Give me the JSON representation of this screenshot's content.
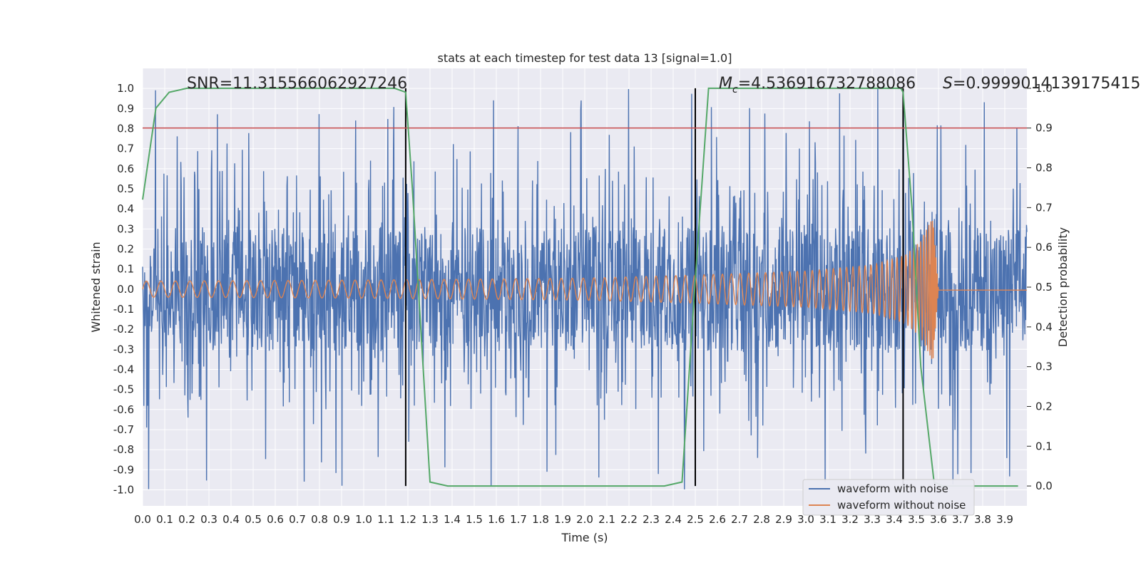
{
  "chart_data": {
    "type": "line",
    "title": "stats at each timestep for test data 13 [signal=1.0]",
    "xlabel": "Time (s)",
    "ylabel": "Whitened strain",
    "y2label": "Detection probability",
    "xlim": [
      0.0,
      4.0
    ],
    "ylim": [
      -1.08,
      1.1
    ],
    "y2lim": [
      -0.05,
      1.05
    ],
    "x_ticks": [
      "0.0",
      "0.1",
      "0.2",
      "0.3",
      "0.4",
      "0.5",
      "0.6",
      "0.7",
      "0.8",
      "0.9",
      "1.0",
      "1.1",
      "1.2",
      "1.3",
      "1.4",
      "1.5",
      "1.6",
      "1.7",
      "1.8",
      "1.9",
      "2.0",
      "2.1",
      "2.2",
      "2.3",
      "2.4",
      "2.5",
      "2.6",
      "2.7",
      "2.8",
      "2.9",
      "3.0",
      "3.1",
      "3.2",
      "3.3",
      "3.4",
      "3.5",
      "3.6",
      "3.7",
      "3.8",
      "3.9"
    ],
    "y_ticks": [
      "1.0",
      "0.9",
      "0.8",
      "0.7",
      "0.6",
      "0.5",
      "0.4",
      "0.3",
      "0.2",
      "0.1",
      "0.0",
      "-0.1",
      "-0.2",
      "-0.3",
      "-0.4",
      "-0.5",
      "-0.6",
      "-0.7",
      "-0.8",
      "-0.9",
      "-1.0"
    ],
    "y2_ticks": [
      "1.0",
      "0.9",
      "0.8",
      "0.7",
      "0.6",
      "0.5",
      "0.4",
      "0.3",
      "0.2",
      "0.1",
      "0.0"
    ],
    "annotations": {
      "snr": "SNR=11.315566062927246",
      "mc": "=4.536916732788086",
      "mc_symbol": "M",
      "mc_sub": "c",
      "s": "=0.9999014139175415",
      "s_symbol": "S"
    },
    "threshold": {
      "y2": 0.9,
      "color": "#c44e52"
    },
    "vlines": [
      1.19,
      2.5,
      3.44
    ],
    "series": [
      {
        "name": "waveform with noise",
        "color": "#4c72b0",
        "description": "noisy whitened strain, roughly uniform band with spikes up to about +/-1.0"
      },
      {
        "name": "waveform without noise",
        "color": "#dd8452",
        "envelope": {
          "t": [
            0.0,
            1.0,
            2.0,
            2.5,
            3.0,
            3.3,
            3.45,
            3.52,
            3.56,
            3.575,
            3.6,
            4.0
          ],
          "amp": [
            0.04,
            0.045,
            0.055,
            0.07,
            0.09,
            0.12,
            0.17,
            0.24,
            0.33,
            0.36,
            0.0,
            0.0
          ]
        }
      },
      {
        "name": "detection probability",
        "color": "#55a868",
        "axis": "y2",
        "x": [
          0.0,
          0.06,
          0.12,
          0.2,
          0.6,
          1.0,
          1.14,
          1.19,
          1.22,
          1.3,
          1.38,
          1.6,
          2.0,
          2.36,
          2.44,
          2.5,
          2.56,
          2.65,
          3.0,
          3.43,
          3.44,
          3.48,
          3.52,
          3.58,
          3.62,
          3.8,
          3.96
        ],
        "y": [
          0.72,
          0.95,
          0.99,
          1.0,
          1.0,
          1.0,
          1.0,
          0.99,
          0.75,
          0.01,
          0.0,
          0.0,
          0.0,
          0.0,
          0.01,
          0.52,
          1.0,
          1.0,
          1.0,
          1.0,
          0.99,
          0.7,
          0.3,
          0.01,
          0.0,
          0.0,
          0.0
        ]
      }
    ],
    "legend": {
      "position": "lower-right",
      "entries": [
        {
          "label": "waveform with noise",
          "color": "#4c72b0"
        },
        {
          "label": "waveform without noise",
          "color": "#dd8452"
        }
      ]
    },
    "colors": {
      "axes_bg": "#eaeaf2",
      "grid": "#ffffff",
      "vline": "#000000"
    }
  }
}
